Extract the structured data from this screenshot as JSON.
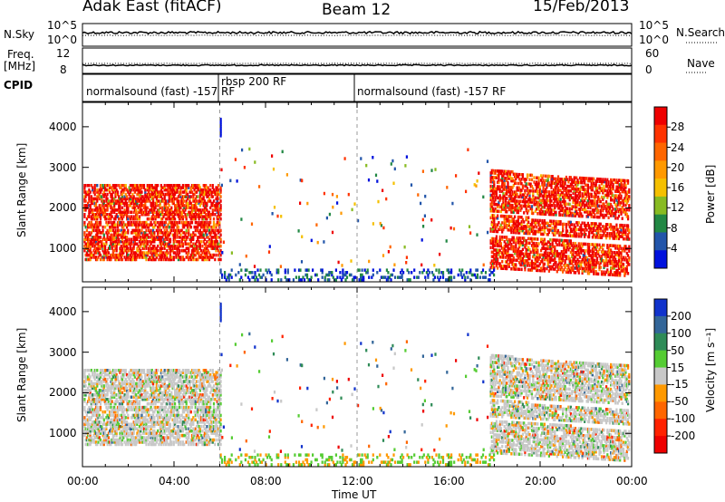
{
  "header": {
    "radar": "Adak East (fitACF)",
    "beam": "Beam 12",
    "date": "15/Feb/2013"
  },
  "panels": {
    "nsky": {
      "label": "N.Sky",
      "ticks": [
        "10^5",
        "10^0"
      ],
      "right_label": "N.Search",
      "right_ticks": [
        "10^5",
        "10^0"
      ]
    },
    "freq": {
      "label_line1": "Freq.",
      "label_line2": "[MHz]",
      "ticks": [
        "12",
        "8"
      ],
      "right_label": "Nave",
      "right_ticks": [
        "60",
        "0"
      ]
    },
    "cpid": {
      "label": "CPID",
      "segments": [
        "normalsound (fast) -157 RF",
        "rbsp 200 RF",
        "normalsound (fast) -157 RF"
      ]
    }
  },
  "chart_data": [
    {
      "type": "heatmap",
      "title": "Power",
      "xlabel": "Time UT",
      "ylabel": "Slant Range [km]",
      "x_ticks": [
        "00:00",
        "04:00",
        "08:00",
        "12:00",
        "16:00",
        "20:00",
        "00:00"
      ],
      "y_ticks": [
        "1000",
        "2000",
        "3000",
        "4000"
      ],
      "ylim": [
        180,
        4600
      ],
      "colorbar": {
        "label": "Power [dB]",
        "ticks": [
          "28",
          "24",
          "20",
          "16",
          "12",
          "8",
          "4"
        ]
      }
    },
    {
      "type": "heatmap",
      "title": "Velocity",
      "xlabel": "Time UT",
      "ylabel": "Slant Range [km]",
      "x_ticks": [
        "00:00",
        "04:00",
        "08:00",
        "12:00",
        "16:00",
        "20:00",
        "00:00"
      ],
      "y_ticks": [
        "1000",
        "2000",
        "3000",
        "4000"
      ],
      "ylim": [
        180,
        4600
      ],
      "colorbar": {
        "label": "Velocity [m s⁻¹]",
        "ticks": [
          "200",
          "100",
          "50",
          "15",
          "-15",
          "-50",
          "-100",
          "-200"
        ]
      }
    }
  ],
  "colors": {
    "power_scale": [
      "#ee0000",
      "#ff3300",
      "#ff6600",
      "#ff9900",
      "#f5c000",
      "#88bb22",
      "#228844",
      "#2255aa",
      "#0011dd"
    ],
    "velocity_scale": [
      "#1133cc",
      "#336699",
      "#2e8b57",
      "#55cc33",
      "#c8c8c8",
      "#ff9900",
      "#ff6600",
      "#ff2200",
      "#ee0000"
    ]
  }
}
